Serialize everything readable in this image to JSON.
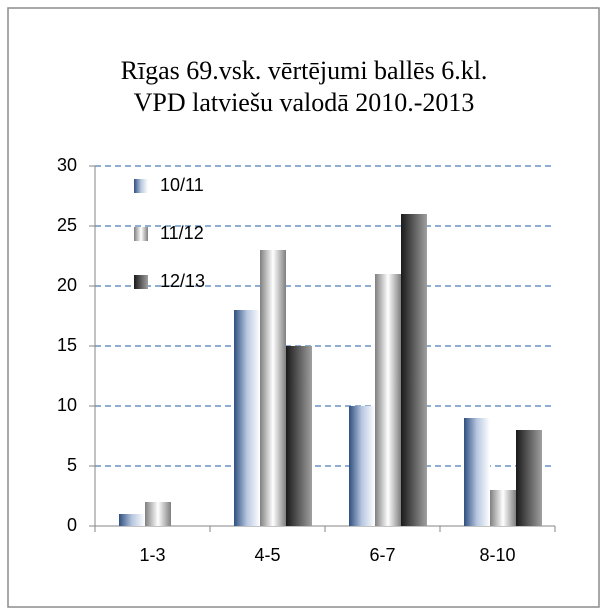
{
  "chart_data": {
    "type": "bar",
    "title": [
      "Rīgas 69.vsk. vērtējumi ballēs 6.kl.",
      "VPD latviešu valodā 2010.-2013"
    ],
    "categories": [
      "1-3",
      "4-5",
      "6-7",
      "8-10"
    ],
    "series": [
      {
        "name": "10/11",
        "color": "#2f4f80",
        "values": [
          1,
          18,
          10,
          9
        ]
      },
      {
        "name": "11/12",
        "color": "#7f7f7f",
        "values": [
          2,
          23,
          21,
          3
        ]
      },
      {
        "name": "12/13",
        "color": "#1a1a1a",
        "values": [
          0,
          15,
          26,
          8
        ]
      }
    ],
    "ylim": [
      0,
      30
    ],
    "yticks": [
      0,
      5,
      10,
      15,
      20,
      25,
      30
    ],
    "grid": true,
    "legend": "top-left"
  }
}
